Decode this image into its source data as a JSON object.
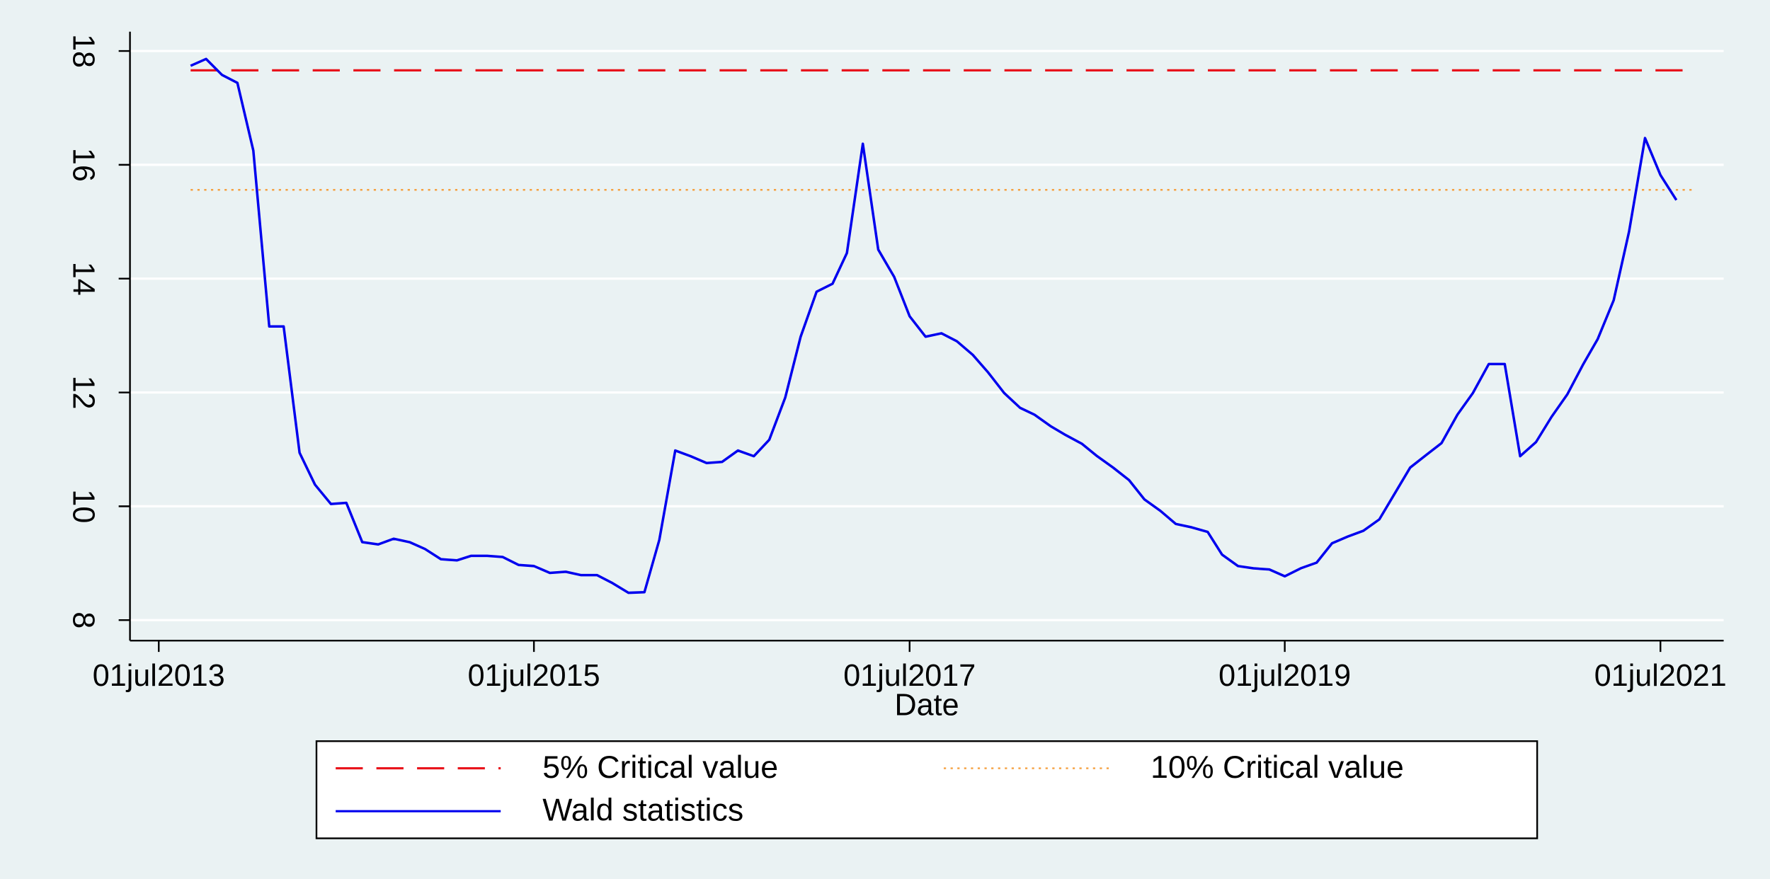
{
  "chart_data": {
    "type": "line",
    "xlabel": "Date",
    "x": [
      "2013-09-01",
      "2013-10-01",
      "2013-11-01",
      "2013-12-01",
      "2014-01-01",
      "2014-02-01",
      "2014-03-01",
      "2014-04-01",
      "2014-05-01",
      "2014-06-01",
      "2014-07-01",
      "2014-08-01",
      "2014-09-01",
      "2014-10-01",
      "2014-11-01",
      "2014-12-01",
      "2015-01-01",
      "2015-02-01",
      "2015-03-01",
      "2015-04-01",
      "2015-05-01",
      "2015-06-01",
      "2015-07-01",
      "2015-08-01",
      "2015-09-01",
      "2015-10-01",
      "2015-11-01",
      "2015-12-01",
      "2016-01-01",
      "2016-02-01",
      "2016-03-01",
      "2016-04-01",
      "2016-05-01",
      "2016-06-01",
      "2016-07-01",
      "2016-08-01",
      "2016-09-01",
      "2016-10-01",
      "2016-11-01",
      "2016-12-01",
      "2017-01-01",
      "2017-02-01",
      "2017-03-01",
      "2017-04-01",
      "2017-05-01",
      "2017-06-01",
      "2017-07-01",
      "2017-08-01",
      "2017-09-01",
      "2017-10-01",
      "2017-11-01",
      "2017-12-01",
      "2018-01-01",
      "2018-02-01",
      "2018-03-01",
      "2018-04-01",
      "2018-05-01",
      "2018-06-01",
      "2018-07-01",
      "2018-08-01",
      "2018-09-01",
      "2018-10-01",
      "2018-11-01",
      "2018-12-01",
      "2019-01-01",
      "2019-02-01",
      "2019-03-01",
      "2019-04-01",
      "2019-05-01",
      "2019-06-01",
      "2019-07-01",
      "2019-08-01",
      "2019-09-01",
      "2019-10-01",
      "2019-11-01",
      "2019-12-01",
      "2020-01-01",
      "2020-02-01",
      "2020-03-01",
      "2020-04-01",
      "2020-05-01",
      "2020-06-01",
      "2020-07-01",
      "2020-08-01",
      "2020-09-01",
      "2020-10-01",
      "2020-11-01",
      "2020-12-01",
      "2021-01-01",
      "2021-02-01",
      "2021-03-01",
      "2021-04-01",
      "2021-05-01",
      "2021-06-01",
      "2021-07-01",
      "2021-08-01"
    ],
    "series": [
      {
        "name": "Wald statistics",
        "color": "#0000ee",
        "values": [
          17.74,
          17.86,
          17.58,
          17.44,
          16.25,
          13.16,
          13.16,
          10.94,
          10.38,
          10.04,
          10.06,
          9.37,
          9.33,
          9.43,
          9.37,
          9.25,
          9.07,
          9.05,
          9.13,
          9.13,
          9.11,
          8.97,
          8.95,
          8.83,
          8.85,
          8.79,
          8.79,
          8.65,
          8.48,
          8.49,
          9.41,
          10.98,
          10.88,
          10.76,
          10.78,
          10.98,
          10.88,
          11.17,
          11.91,
          12.98,
          13.77,
          13.91,
          14.45,
          16.37,
          14.51,
          14.03,
          13.34,
          12.98,
          13.04,
          12.9,
          12.66,
          12.35,
          11.99,
          11.73,
          11.61,
          11.41,
          11.25,
          11.1,
          10.88,
          10.68,
          10.46,
          10.12,
          9.92,
          9.69,
          9.63,
          9.55,
          9.15,
          8.95,
          8.91,
          8.89,
          8.77,
          8.91,
          9.01,
          9.35,
          9.47,
          9.57,
          9.77,
          10.24,
          10.68,
          10.9,
          11.11,
          11.61,
          11.99,
          12.5,
          12.5,
          10.88,
          11.13,
          11.57,
          11.97,
          12.5,
          12.94,
          13.62,
          14.83,
          16.47,
          15.82,
          15.38
        ]
      }
    ],
    "reference_lines": [
      {
        "name": "5% Critical value",
        "value": 17.66,
        "color": "#e8141c",
        "dash": "dashed"
      },
      {
        "name": "10% Critical value",
        "value": 15.56,
        "color": "#f5a040",
        "dash": "dotted"
      }
    ],
    "legend_order": [
      0,
      1,
      2
    ],
    "xlim": [
      "2013-05-06",
      "2021-11-01"
    ],
    "xticks": [
      {
        "value": "2013-07-01",
        "label": "01jul2013"
      },
      {
        "value": "2015-07-01",
        "label": "01jul2015"
      },
      {
        "value": "2017-07-01",
        "label": "01jul2017"
      },
      {
        "value": "2019-07-01",
        "label": "01jul2019"
      },
      {
        "value": "2021-07-01",
        "label": "01jul2021"
      }
    ],
    "ylim": [
      7.64,
      18.34
    ],
    "yticks": [
      8,
      10,
      12,
      14,
      16,
      18
    ],
    "grid": true
  }
}
